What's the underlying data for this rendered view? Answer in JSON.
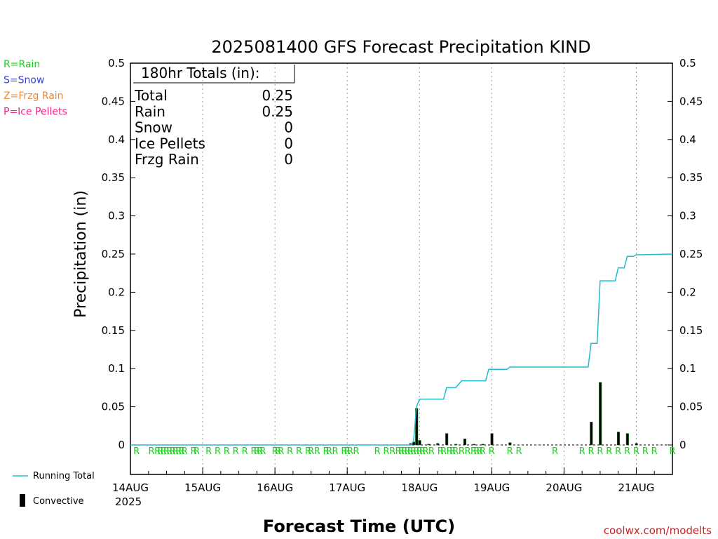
{
  "chart_data": {
    "type": "bar+line",
    "title": "2025081400 GFS Forecast Precipitation KIND",
    "xlabel": "Forecast Time (UTC)",
    "ylabel": "Precipitation (in)",
    "ylim": [
      0,
      0.5
    ],
    "y_ticks": [
      "0",
      "0.05",
      "0.1",
      "0.15",
      "0.2",
      "0.25",
      "0.3",
      "0.35",
      "0.4",
      "0.45",
      "0.5"
    ],
    "x_range_hours": [
      0,
      180
    ],
    "x_ticks": [
      {
        "label": "14AUG",
        "hour": 0
      },
      {
        "label": "15AUG",
        "hour": 24
      },
      {
        "label": "16AUG",
        "hour": 48
      },
      {
        "label": "17AUG",
        "hour": 72
      },
      {
        "label": "18AUG",
        "hour": 96
      },
      {
        "label": "19AUG",
        "hour": 120
      },
      {
        "label": "20AUG",
        "hour": 144
      },
      {
        "label": "21AUG",
        "hour": 168
      }
    ],
    "year_label": "2025",
    "grid": "vertical-dotted",
    "totals_box": {
      "heading": "180hr Totals (in):",
      "rows": [
        {
          "label": "Total",
          "value": "0.25"
        },
        {
          "label": "Rain",
          "value": "0.25"
        },
        {
          "label": "Snow",
          "value": "0"
        },
        {
          "label": "Ice Pellets",
          "value": "0"
        },
        {
          "label": "Frzg Rain",
          "value": "0"
        }
      ]
    },
    "type_legend": [
      {
        "text": "R=Rain",
        "color": "#22cc22"
      },
      {
        "text": "S=Snow",
        "color": "#3344dd"
      },
      {
        "text": "Z=Frzg Rain",
        "color": "#ee8833"
      },
      {
        "text": "P=Ice Pellets",
        "color": "#ee2288"
      }
    ],
    "series_legend": [
      {
        "name": "Running Total",
        "color": "#22bbcc"
      },
      {
        "name": "Convective",
        "color": "#000000"
      }
    ],
    "precip_bars": [
      {
        "hour": 93,
        "value": 0.002
      },
      {
        "hour": 94,
        "value": 0.004
      },
      {
        "hour": 95,
        "value": 0.048
      },
      {
        "hour": 96,
        "value": 0.006
      },
      {
        "hour": 99,
        "value": 0.001
      },
      {
        "hour": 102,
        "value": 0.002
      },
      {
        "hour": 105,
        "value": 0.015
      },
      {
        "hour": 108,
        "value": 0.001
      },
      {
        "hour": 111,
        "value": 0.008
      },
      {
        "hour": 114,
        "value": 0.001
      },
      {
        "hour": 117,
        "value": 0.001
      },
      {
        "hour": 120,
        "value": 0.015
      },
      {
        "hour": 126,
        "value": 0.003
      },
      {
        "hour": 153,
        "value": 0.03
      },
      {
        "hour": 156,
        "value": 0.082
      },
      {
        "hour": 162,
        "value": 0.017
      },
      {
        "hour": 165,
        "value": 0.015
      },
      {
        "hour": 168,
        "value": 0.002
      }
    ],
    "running_total": [
      {
        "hour": 0,
        "value": 0
      },
      {
        "hour": 93,
        "value": 0
      },
      {
        "hour": 94,
        "value": 0.004
      },
      {
        "hour": 95,
        "value": 0.05
      },
      {
        "hour": 96,
        "value": 0.06
      },
      {
        "hour": 104,
        "value": 0.06
      },
      {
        "hour": 105,
        "value": 0.075
      },
      {
        "hour": 108,
        "value": 0.075
      },
      {
        "hour": 110,
        "value": 0.084
      },
      {
        "hour": 118,
        "value": 0.084
      },
      {
        "hour": 119,
        "value": 0.099
      },
      {
        "hour": 125,
        "value": 0.099
      },
      {
        "hour": 126,
        "value": 0.102
      },
      {
        "hour": 152,
        "value": 0.102
      },
      {
        "hour": 153,
        "value": 0.133
      },
      {
        "hour": 155,
        "value": 0.133
      },
      {
        "hour": 156,
        "value": 0.215
      },
      {
        "hour": 161,
        "value": 0.215
      },
      {
        "hour": 162,
        "value": 0.232
      },
      {
        "hour": 164,
        "value": 0.232
      },
      {
        "hour": 165,
        "value": 0.247
      },
      {
        "hour": 167,
        "value": 0.247
      },
      {
        "hour": 168,
        "value": 0.249
      },
      {
        "hour": 180,
        "value": 0.25
      }
    ],
    "type_marks": {
      "letter": "R",
      "hours": [
        2,
        7,
        9,
        10,
        11,
        12,
        13,
        14,
        15,
        16,
        17,
        18,
        21,
        22,
        26,
        29,
        32,
        35,
        38,
        41,
        42,
        43,
        44,
        48,
        49,
        50,
        53,
        56,
        59,
        60,
        62,
        65,
        66,
        68,
        71,
        72,
        73,
        75,
        82,
        85,
        87,
        89,
        90,
        91,
        92,
        93,
        94,
        95,
        96,
        97,
        98,
        100,
        103,
        104,
        106,
        107,
        108,
        110,
        112,
        114,
        115,
        116,
        117,
        120,
        126,
        129,
        141,
        150,
        153,
        156,
        159,
        162,
        165,
        168,
        171,
        174,
        180
      ]
    }
  },
  "credit": "coolwx.com/modelts"
}
